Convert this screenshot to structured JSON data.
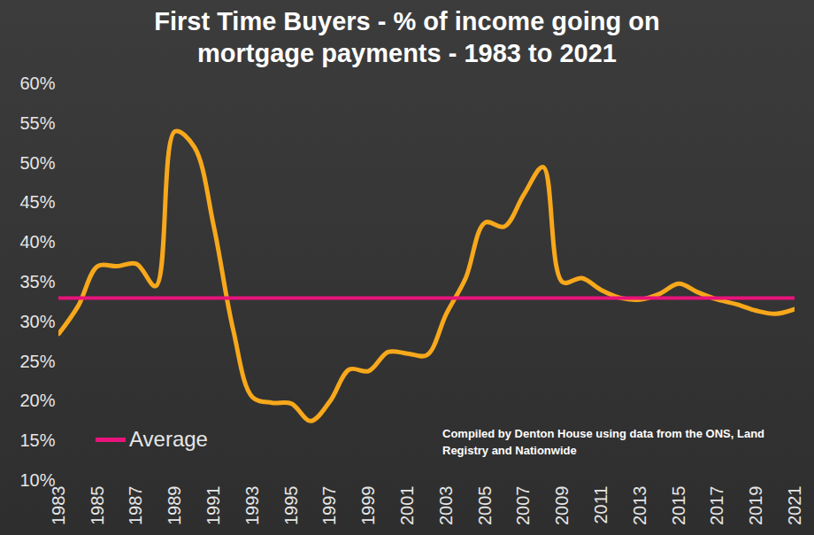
{
  "chart_data": {
    "type": "line",
    "title": "First Time Buyers - % of income going on mortgage payments - 1983 to 2021",
    "x": [
      1983,
      1984,
      1985,
      1986,
      1987,
      1988,
      1989,
      1990,
      1991,
      1992,
      1993,
      1994,
      1995,
      1996,
      1997,
      1998,
      1999,
      2000,
      2001,
      2002,
      2003,
      2004,
      2005,
      2006,
      2007,
      2008,
      2009,
      2010,
      2011,
      2012,
      2013,
      2014,
      2015,
      2016,
      2017,
      2018,
      2019,
      2020,
      2021
    ],
    "series": [
      {
        "color": "#f7a81b",
        "values": [
          28.5,
          32,
          37,
          37,
          37.3,
          34.5,
          54,
          52,
          42,
          29,
          20.5,
          19.8,
          19.7,
          17.5,
          20,
          24,
          23.8,
          26.2,
          26,
          25.8,
          31,
          35.5,
          42.5,
          42,
          46,
          49.5,
          35,
          35.5,
          34,
          33,
          32.8,
          33.5,
          34.8,
          33.7,
          32.8,
          32.2,
          31.4,
          31,
          31.6
        ]
      },
      {
        "name": "Average",
        "color": "#e8137b",
        "values": [
          33,
          33,
          33,
          33,
          33,
          33,
          33,
          33,
          33,
          33,
          33,
          33,
          33,
          33,
          33,
          33,
          33,
          33,
          33,
          33,
          33,
          33,
          33,
          33,
          33,
          33,
          33,
          33,
          33,
          33,
          33,
          33,
          33,
          33,
          33,
          33,
          33,
          33,
          33
        ]
      }
    ],
    "xlim": [
      1983,
      2021
    ],
    "xticks": [
      1983,
      1985,
      1987,
      1989,
      1991,
      1993,
      1995,
      1997,
      1999,
      2001,
      2003,
      2005,
      2007,
      2009,
      2011,
      2013,
      2015,
      2017,
      2019,
      2021
    ],
    "ylim": [
      10,
      60
    ],
    "yticks": [
      {
        "value": 10,
        "label": "10%"
      },
      {
        "value": 15,
        "label": "15%"
      },
      {
        "value": 20,
        "label": "20%"
      },
      {
        "value": 25,
        "label": "25%"
      },
      {
        "value": 30,
        "label": "30%"
      },
      {
        "value": 35,
        "label": "35%"
      },
      {
        "value": 40,
        "label": "40%"
      },
      {
        "value": 45,
        "label": "45%"
      },
      {
        "value": 50,
        "label": "50%"
      },
      {
        "value": 55,
        "label": "55%"
      },
      {
        "value": 60,
        "label": "60%"
      }
    ],
    "grid": false,
    "legend": "lower left",
    "annotations": [
      "Compiled by Denton House using data from the ONS, Land Registry and Nationwide"
    ]
  }
}
